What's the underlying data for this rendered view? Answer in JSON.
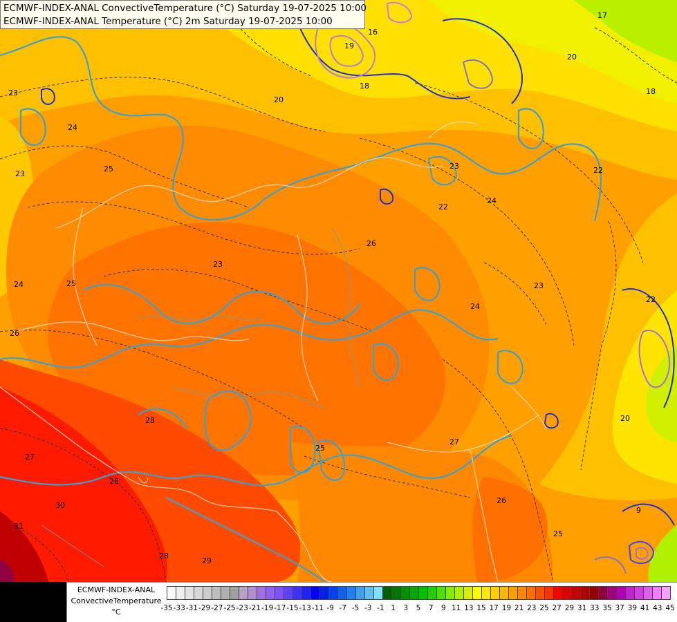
{
  "title": {
    "line1": "ECMWF-INDEX-ANAL ConvectiveTemperature (°C) Saturday 19-07-2025 10:00",
    "line2": "ECMWF-INDEX-ANAL Temperature (°C) 2m Saturday 19-07-2025 10:00"
  },
  "legend": {
    "line1": "ECMWF-INDEX-ANAL",
    "line2": "ConvectiveTemperature",
    "line3": "°C",
    "colors": [
      "#fafafa",
      "#f0f0f0",
      "#e4e4e4",
      "#d8d8d8",
      "#cccccc",
      "#bebebe",
      "#b0b0b0",
      "#a0a0a0",
      "#b8a0c0",
      "#b090d0",
      "#a070e0",
      "#9060f0",
      "#8050ff",
      "#6040ff",
      "#4030ff",
      "#2020ff",
      "#0000ff",
      "#0020f0",
      "#0040f0",
      "#1060f0",
      "#2080f0",
      "#40a0f0",
      "#60c0f0",
      "#80e0ff",
      "#006000",
      "#007800",
      "#009000",
      "#00a800",
      "#00c000",
      "#20d000",
      "#50e000",
      "#80f000",
      "#b0f000",
      "#d8f000",
      "#ffff00",
      "#ffe800",
      "#ffd000",
      "#ffb800",
      "#ffa000",
      "#ff8800",
      "#ff7000",
      "#ff5000",
      "#ff3000",
      "#ff0000",
      "#e00000",
      "#c80000",
      "#b00000",
      "#980000",
      "#900040",
      "#a00080",
      "#b000b0",
      "#c020d0",
      "#d040e0",
      "#e060f0",
      "#f080ff",
      "#ffa0ff"
    ],
    "ticks": [
      "-35",
      "-33",
      "-31",
      "-29",
      "-27",
      "-25",
      "-23",
      "-21",
      "-19",
      "-17",
      "-15",
      "-13",
      "-11",
      "-9",
      "-7",
      "-5",
      "-3",
      "-1",
      "1",
      "3",
      "5",
      "7",
      "9",
      "11",
      "13",
      "15",
      "17",
      "19",
      "21",
      "23",
      "25",
      "27",
      "29",
      "31",
      "33",
      "35",
      "37",
      "39",
      "41",
      "43",
      "45"
    ]
  },
  "contour_labels": [
    "23",
    "24",
    "25",
    "26",
    "23",
    "23",
    "24",
    "25",
    "26",
    "27",
    "28",
    "29",
    "30",
    "31",
    "28",
    "28",
    "25",
    "26",
    "27",
    "25",
    "22",
    "23",
    "24",
    "22",
    "20",
    "18",
    "17",
    "16",
    "18",
    "19",
    "20",
    "20",
    "23",
    "24",
    "22",
    "9"
  ]
}
